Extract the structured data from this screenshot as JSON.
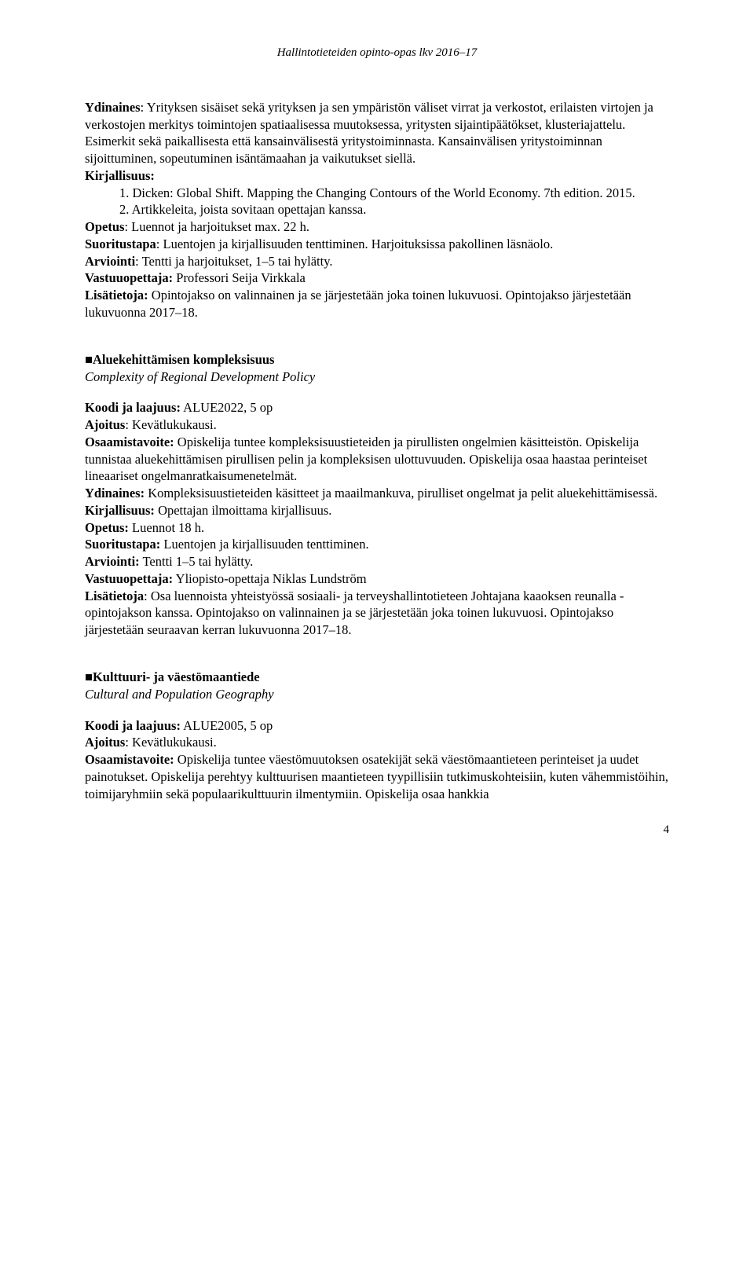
{
  "header": "Hallintotieteiden opinto-opas lkv 2016–17",
  "course1": {
    "ydinaines_label": "Ydinaines",
    "ydinaines": ": Yrityksen sisäiset sekä yrityksen ja sen ympäristön väliset virrat ja verkostot, erilaisten virtojen ja verkostojen merkitys toimintojen spatiaalisessa muutoksessa, yritysten sijaintipäätökset, klusteriajattelu. Esimerkit sekä paikallisesta että kansainvälisestä yritystoiminnasta. Kansainvälisen yritystoiminnan sijoittuminen, sopeutuminen isäntämaahan ja vaikutukset siellä.",
    "kirjallisuus_label": "Kirjallisuus:",
    "lit1": "1.  Dicken: Global Shift. Mapping the Changing Contours of the World Economy. 7th edition. 2015.",
    "lit2": "2.  Artikkeleita, joista sovitaan opettajan kanssa.",
    "opetus_label": "Opetus",
    "opetus": ": Luennot ja harjoitukset max. 22 h.",
    "suoritustapa_label": "Suoritustapa",
    "suoritustapa": ": Luentojen ja kirjallisuuden tenttiminen. Harjoituksissa pakollinen läsnäolo.",
    "arviointi_label": "Arviointi",
    "arviointi": ": Tentti ja harjoitukset, 1–5 tai hylätty.",
    "vastuu_label": "Vastuuopettaja:",
    "vastuu": " Professori Seija Virkkala",
    "lisa_label": "Lisätietoja:",
    "lisa": " Opintojakso on valinnainen ja se järjestetään joka toinen lukuvuosi. Opintojakso järjestetään lukuvuonna 2017–18."
  },
  "course2": {
    "square": "■ ",
    "title": "Aluekehittämisen kompleksisuus",
    "subtitle": "Complexity of Regional Development Policy",
    "koodi_label": "Koodi ja laajuus:",
    "koodi": " ALUE2022, 5 op",
    "ajoitus_label": "Ajoitus",
    "ajoitus": ": Kevätlukukausi.",
    "osaamis_label": "Osaamistavoite:",
    "osaamis": " Opiskelija tuntee kompleksisuustieteiden ja pirullisten ongelmien käsitteistön. Opiskelija tunnistaa aluekehittämisen pirullisen pelin ja kompleksisen ulottuvuuden. Opiskelija osaa haastaa perinteiset lineaariset ongelmanratkaisumenetelmät.",
    "ydinaines_label": "Ydinaines:",
    "ydinaines": " Kompleksisuustieteiden käsitteet ja maailmankuva, pirulliset ongelmat ja pelit aluekehittämisessä.",
    "kirjallisuus_label": "Kirjallisuus:",
    "kirjallisuus": " Opettajan ilmoittama kirjallisuus.",
    "opetus_label": "Opetus:",
    "opetus": " Luennot 18 h.",
    "suoritustapa_label": "Suoritustapa:",
    "suoritustapa": " Luentojen ja kirjallisuuden tenttiminen.",
    "arviointi_label": "Arviointi:",
    "arviointi": " Tentti 1–5 tai hylätty.",
    "vastuu_label": "Vastuuopettaja:",
    "vastuu": " Yliopisto-opettaja Niklas Lundström",
    "lisa_label": "Lisätietoja",
    "lisa": ": Osa luennoista yhteistyössä sosiaali- ja terveyshallintotieteen Johtajana kaaoksen reunalla -opintojakson kanssa. Opintojakso on valinnainen ja se järjestetään joka toinen lukuvuosi. Opintojakso järjestetään seuraavan kerran lukuvuonna 2017–18."
  },
  "course3": {
    "square": "■ ",
    "title": "Kulttuuri- ja väestömaantiede",
    "subtitle": "Cultural and Population Geography",
    "koodi_label": "Koodi ja laajuus:",
    "koodi": " ALUE2005, 5 op",
    "ajoitus_label": "Ajoitus",
    "ajoitus": ": Kevätlukukausi.",
    "osaamis_label": "Osaamistavoite:",
    "osaamis": " Opiskelija tuntee väestömuutoksen osatekijät sekä väestömaantieteen perinteiset ja uudet painotukset. Opiskelija perehtyy kulttuurisen maantieteen tyypillisiin tutkimuskohteisiin, kuten vähemmistöihin, toimijaryhmiin sekä populaarikulttuurin ilmentymiin. Opiskelija osaa hankkia"
  },
  "page_number": "4"
}
